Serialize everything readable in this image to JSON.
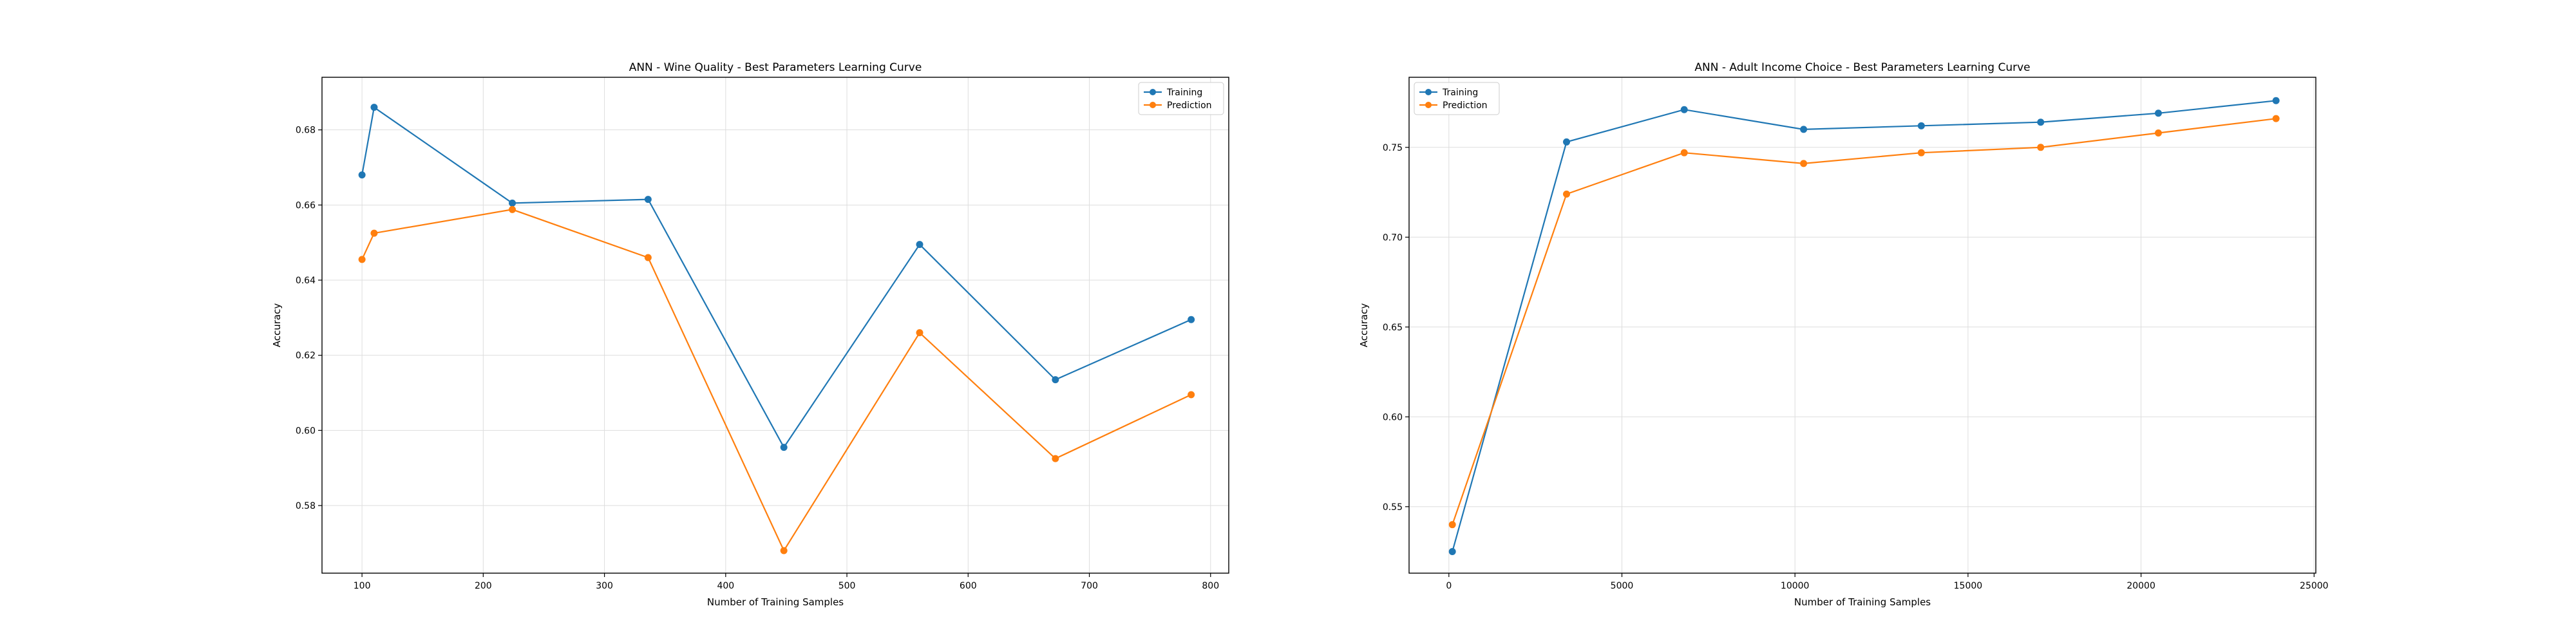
{
  "chart_data": [
    {
      "type": "line",
      "title": "ANN - Wine Quality -  Best Parameters Learning Curve",
      "xlabel": "Number of Training Samples",
      "ylabel": "Accuracy",
      "xlim": [
        67,
        815
      ],
      "ylim": [
        0.562,
        0.694
      ],
      "xticks": [
        100,
        200,
        300,
        400,
        500,
        600,
        700,
        800
      ],
      "yticks": [
        0.58,
        0.6,
        0.62,
        0.64,
        0.66,
        0.68
      ],
      "ytick_decimals": 2,
      "grid": true,
      "legend_position": "top-right",
      "series": [
        {
          "name": "Training",
          "color": "#1f77b4",
          "x": [
            100,
            110,
            224,
            336,
            448,
            560,
            672,
            784
          ],
          "y": [
            0.668,
            0.686,
            0.6605,
            0.6615,
            0.5955,
            0.6495,
            0.6135,
            0.6295
          ]
        },
        {
          "name": "Prediction",
          "color": "#ff7f0e",
          "x": [
            100,
            110,
            224,
            336,
            448,
            560,
            672,
            784
          ],
          "y": [
            0.6455,
            0.6525,
            0.6588,
            0.646,
            0.568,
            0.626,
            0.5925,
            0.6095
          ]
        }
      ]
    },
    {
      "type": "line",
      "title": "ANN - Adult Income Choice -  Best Parameters Learning Curve",
      "xlabel": "Number of Training Samples",
      "ylabel": "Accuracy",
      "xlim": [
        -1150,
        25050
      ],
      "ylim": [
        0.513,
        0.789
      ],
      "xticks": [
        0,
        5000,
        10000,
        15000,
        20000,
        25000
      ],
      "yticks": [
        0.55,
        0.6,
        0.65,
        0.7,
        0.75
      ],
      "ytick_decimals": 2,
      "grid": true,
      "legend_position": "top-left",
      "series": [
        {
          "name": "Training",
          "color": "#1f77b4",
          "x": [
            100,
            3400,
            6800,
            10250,
            13650,
            17100,
            20500,
            23900
          ],
          "y": [
            0.525,
            0.753,
            0.771,
            0.76,
            0.762,
            0.764,
            0.769,
            0.776
          ]
        },
        {
          "name": "Prediction",
          "color": "#ff7f0e",
          "x": [
            100,
            3400,
            6800,
            10250,
            13650,
            17100,
            20500,
            23900
          ],
          "y": [
            0.54,
            0.724,
            0.747,
            0.741,
            0.747,
            0.75,
            0.758,
            0.766
          ]
        }
      ]
    }
  ]
}
